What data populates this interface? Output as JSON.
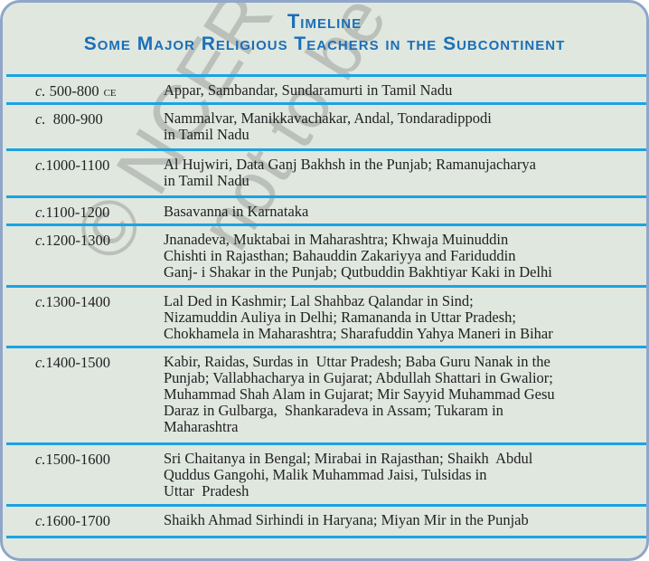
{
  "title": "Timeline",
  "subtitle": "Some Major Religious Teachers in the Subcontinent",
  "watermark": [
    "© NCERT",
    "not to be republished"
  ],
  "colors": {
    "title": "#1b6fb8",
    "rule": "#1ba3e2",
    "background": "#dfe7df",
    "border": "#8fa6c9"
  },
  "rows": [
    {
      "circa": "c.",
      "period": " 500-800",
      "era": "CE",
      "lines": [
        "Appar, Sambandar, Sundaramurti in Tamil Nadu"
      ]
    },
    {
      "circa": "c.",
      "period": "  800-900",
      "lines": [
        "Nammalvar, Manikkavachakar, Andal, Tondaradippodi",
        "in Tamil Nadu"
      ]
    },
    {
      "circa": "c.",
      "period": "1000-1100",
      "lines": [
        "Al Hujwiri, Data Ganj Bakhsh in the Punjab; Ramanujacharya",
        "in Tamil Nadu"
      ]
    },
    {
      "circa": "c.",
      "period": "1100-1200",
      "lines": [
        "Basavanna in Karnataka"
      ]
    },
    {
      "circa": "c.",
      "period": "1200-1300",
      "lines": [
        "Jnanadeva, Muktabai in Maharashtra; Khwaja Muinuddin",
        "Chishti in Rajasthan; Bahauddin Zakariyya and Fariduddin",
        "Ganj- i Shakar in the Punjab; Qutbuddin Bakhtiyar Kaki in Delhi"
      ]
    },
    {
      "circa": "c.",
      "period": "1300-1400",
      "lines": [
        "Lal Ded in Kashmir; Lal Shahbaz Qalandar in Sind;",
        "Nizamuddin Auliya in Delhi; Ramananda in Uttar Pradesh;",
        "Chokhamela in Maharashtra; Sharafuddin Yahya Maneri in Bihar"
      ]
    },
    {
      "circa": "c.",
      "period": "1400-1500",
      "lines": [
        "Kabir, Raidas, Surdas in  Uttar Pradesh; Baba Guru Nanak in the",
        "Punjab; Vallabhacharya in Gujarat; Abdullah Shattari in Gwalior;",
        "Muhammad Shah Alam in Gujarat; Mir Sayyid Muhammad Gesu",
        "Daraz in Gulbarga,  Shankaradeva in Assam; Tukaram in",
        "Maharashtra"
      ]
    },
    {
      "circa": "c.",
      "period": "1500-1600",
      "lines": [
        "Sri Chaitanya in Bengal; Mirabai in Rajasthan; Shaikh  Abdul",
        "Quddus Gangohi, Malik Muhammad Jaisi, Tulsidas in",
        "Uttar  Pradesh"
      ]
    },
    {
      "circa": "c.",
      "period": "1600-1700",
      "lines": [
        "Shaikh Ahmad Sirhindi in Haryana; Miyan Mir in the Punjab"
      ]
    }
  ]
}
